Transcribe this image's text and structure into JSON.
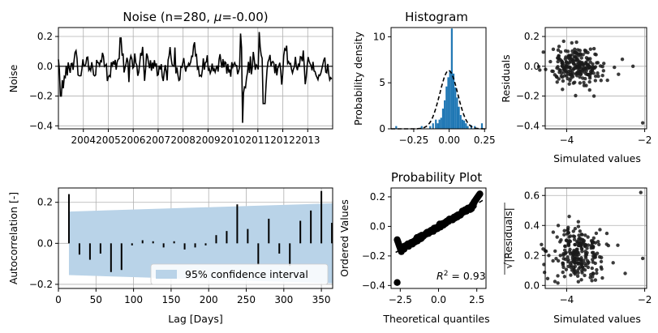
{
  "chart_data": [
    {
      "id": "noise",
      "type": "line",
      "title_prefix": "Noise (n=280, ",
      "title_mu": "μ",
      "title_suffix": "=-0.00)",
      "ylabel": "Noise",
      "xlabel": "",
      "x_ticks": [
        "2004",
        "2005",
        "2006",
        "2007",
        "2008",
        "2009",
        "2010",
        "2011",
        "2012",
        "2013"
      ],
      "xlim": [
        2003.0,
        2014.0
      ],
      "ylim": [
        -0.42,
        0.26
      ],
      "y_ticks": [
        -0.4,
        -0.2,
        0.0,
        0.2
      ],
      "y_tick_labels": [
        "−0.4",
        "−0.2",
        "0.0",
        "0.2"
      ],
      "grid": true,
      "series": [
        {
          "color": "#000000",
          "x": [],
          "y": []
        }
      ]
    },
    {
      "id": "histogram",
      "type": "bar",
      "title": "Histogram",
      "ylabel": "Probability density",
      "xlabel": "",
      "xlim": [
        -0.41,
        0.26
      ],
      "ylim": [
        0,
        11
      ],
      "x_ticks": [
        -0.25,
        0.0,
        0.25
      ],
      "x_tick_labels": [
        "−0.25",
        "0.00",
        "0.25"
      ],
      "y_ticks": [
        0,
        5,
        10
      ],
      "y_tick_labels": [
        "0",
        "5",
        "10"
      ],
      "bar_color": "#1f77b4",
      "bin_width": 0.0125,
      "bins": [
        [
          -0.38,
          0.3
        ],
        [
          -0.2,
          0.3
        ],
        [
          -0.14,
          0.3
        ],
        [
          -0.12,
          0.6
        ],
        [
          -0.1,
          1.0
        ],
        [
          -0.0875,
          0.6
        ],
        [
          -0.075,
          1.0
        ],
        [
          -0.0625,
          1.2
        ],
        [
          -0.05,
          2.2
        ],
        [
          -0.0375,
          3.1
        ],
        [
          -0.025,
          4.6
        ],
        [
          -0.0125,
          5.6
        ],
        [
          0.0,
          6.2
        ],
        [
          0.0125,
          10.9
        ],
        [
          0.025,
          6.0
        ],
        [
          0.0375,
          4.5
        ],
        [
          0.05,
          3.4
        ],
        [
          0.0625,
          2.4
        ],
        [
          0.075,
          1.5
        ],
        [
          0.0875,
          1.0
        ],
        [
          0.1,
          0.9
        ],
        [
          0.1125,
          0.6
        ],
        [
          0.125,
          0.3
        ],
        [
          0.15,
          0.4
        ],
        [
          0.175,
          0.3
        ],
        [
          0.225,
          0.6
        ]
      ],
      "density_curve": {
        "color": "#000000",
        "style": "dashed",
        "mean": -0.003,
        "std": 0.063
      }
    },
    {
      "id": "residuals",
      "type": "scatter",
      "title": "",
      "ylabel": "Residuals",
      "xlabel": "Simulated values",
      "xlim": [
        -4.55,
        -1.95
      ],
      "ylim": [
        -0.42,
        0.26
      ],
      "x_ticks": [
        -4,
        -2
      ],
      "x_tick_labels": [
        "−4",
        "−2"
      ],
      "y_ticks": [
        -0.4,
        -0.2,
        0.0,
        0.2
      ],
      "y_tick_labels": [
        "−0.4",
        "−0.2",
        "0.0",
        "0.2"
      ],
      "color": "#1a1a1a",
      "grid": true,
      "points": []
    },
    {
      "id": "acf",
      "type": "bar",
      "title": "",
      "ylabel": "Autocorrelation [-]",
      "xlabel": "Lag [Days]",
      "xlim": [
        0,
        365
      ],
      "ylim": [
        -0.22,
        0.27
      ],
      "x_ticks": [
        0,
        50,
        100,
        150,
        200,
        250,
        300,
        350
      ],
      "x_tick_labels": [
        "0",
        "50",
        "100",
        "150",
        "200",
        "250",
        "300",
        "350"
      ],
      "y_ticks": [
        -0.2,
        0.0,
        0.2
      ],
      "y_tick_labels": [
        "−0.2",
        "0.0",
        "0.2"
      ],
      "grid": true,
      "legend": {
        "label": "95% confidence interval",
        "placement": "lower right"
      },
      "confidence_color": "#b9d3e8",
      "confidence_band": {
        "x": [
          14,
          365
        ],
        "upper": [
          0.155,
          0.195
        ],
        "lower": [
          -0.155,
          -0.195
        ]
      },
      "lags": [
        14,
        28,
        42,
        56,
        70,
        84,
        98,
        112,
        126,
        140,
        154,
        168,
        182,
        196,
        210,
        224,
        238,
        252,
        266,
        280,
        294,
        308,
        322,
        336,
        350,
        364
      ],
      "values": [
        0.24,
        -0.055,
        -0.08,
        -0.05,
        -0.14,
        -0.13,
        -0.01,
        0.015,
        0.01,
        -0.02,
        0.01,
        -0.03,
        -0.02,
        -0.01,
        0.04,
        0.06,
        0.19,
        0.07,
        -0.105,
        0.12,
        -0.05,
        -0.11,
        0.11,
        0.16,
        0.255,
        0.1
      ]
    },
    {
      "id": "probplot",
      "type": "scatter",
      "title": "Probability Plot",
      "ylabel": "Ordered Values",
      "xlabel": "Theoretical quantiles",
      "xlim": [
        -3.1,
        3.1
      ],
      "ylim": [
        -0.42,
        0.26
      ],
      "x_ticks": [
        -2.5,
        0.0,
        2.5
      ],
      "x_tick_labels": [
        "−2.5",
        "0.0",
        "2.5"
      ],
      "y_ticks": [
        -0.4,
        -0.2,
        0.0,
        0.2
      ],
      "y_tick_labels": [
        "−0.4",
        "−0.2",
        "0.0",
        "0.2"
      ],
      "annotation_r2_label": "R",
      "annotation_r2_exp": "2",
      "annotation_r2_value": " = 0.93",
      "fit_line": {
        "slope": 0.062,
        "intercept": -0.003,
        "color": "#000000",
        "style": "dashed"
      },
      "points": []
    },
    {
      "id": "scale_location",
      "type": "scatter",
      "title": "",
      "ylabel": "√|Residuals|",
      "xlabel": "Simulated values",
      "xlim": [
        -4.55,
        -1.95
      ],
      "ylim": [
        -0.02,
        0.65
      ],
      "x_ticks": [
        -4,
        -2
      ],
      "x_tick_labels": [
        "−4",
        "−2"
      ],
      "y_ticks": [
        0.0,
        0.2,
        0.4,
        0.6
      ],
      "y_tick_labels": [
        "0.0",
        "0.2",
        "0.4",
        "0.6"
      ],
      "color": "#1a1a1a",
      "grid": true,
      "points": []
    }
  ]
}
